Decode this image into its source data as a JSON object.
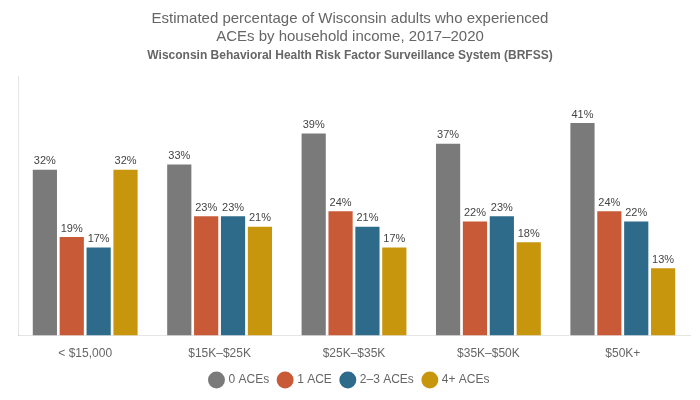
{
  "chart_data": {
    "type": "bar",
    "title": [
      "Estimated percentage of Wisconsin adults who experienced",
      "ACEs by household income, 2017–2020"
    ],
    "subtitle": "Wisconsin Behavioral Health Risk Factor Surveillance System (BRFSS)",
    "categories": [
      "< $15,000",
      "$15K–$25K",
      "$25K–$35K",
      "$35K–$50K",
      "$50K+"
    ],
    "series": [
      {
        "name": "0 ACEs",
        "color": "#7a7a7a",
        "values": [
          32,
          33,
          39,
          37,
          41
        ],
        "value_labels": [
          "32%",
          "33%",
          "39%",
          "37%",
          "41%"
        ]
      },
      {
        "name": "1 ACE",
        "color": "#c85a37",
        "values": [
          19,
          23,
          24,
          22,
          24
        ],
        "value_labels": [
          "19%",
          "23%",
          "24%",
          "22%",
          "24%"
        ]
      },
      {
        "name": "2–3 ACEs",
        "color": "#2e6b8a",
        "values": [
          17,
          23,
          21,
          23,
          22
        ],
        "value_labels": [
          "17%",
          "23%",
          "21%",
          "23%",
          "22%"
        ]
      },
      {
        "name": "4+ ACEs",
        "color": "#c8960c",
        "values": [
          32,
          21,
          17,
          18,
          13
        ],
        "value_labels": [
          "32%",
          "21%",
          "17%",
          "18%",
          "13%"
        ]
      }
    ],
    "ylim": [
      0,
      50
    ],
    "grid": false,
    "legend": "bottom",
    "data_labels": true,
    "tick_labels": "x"
  }
}
